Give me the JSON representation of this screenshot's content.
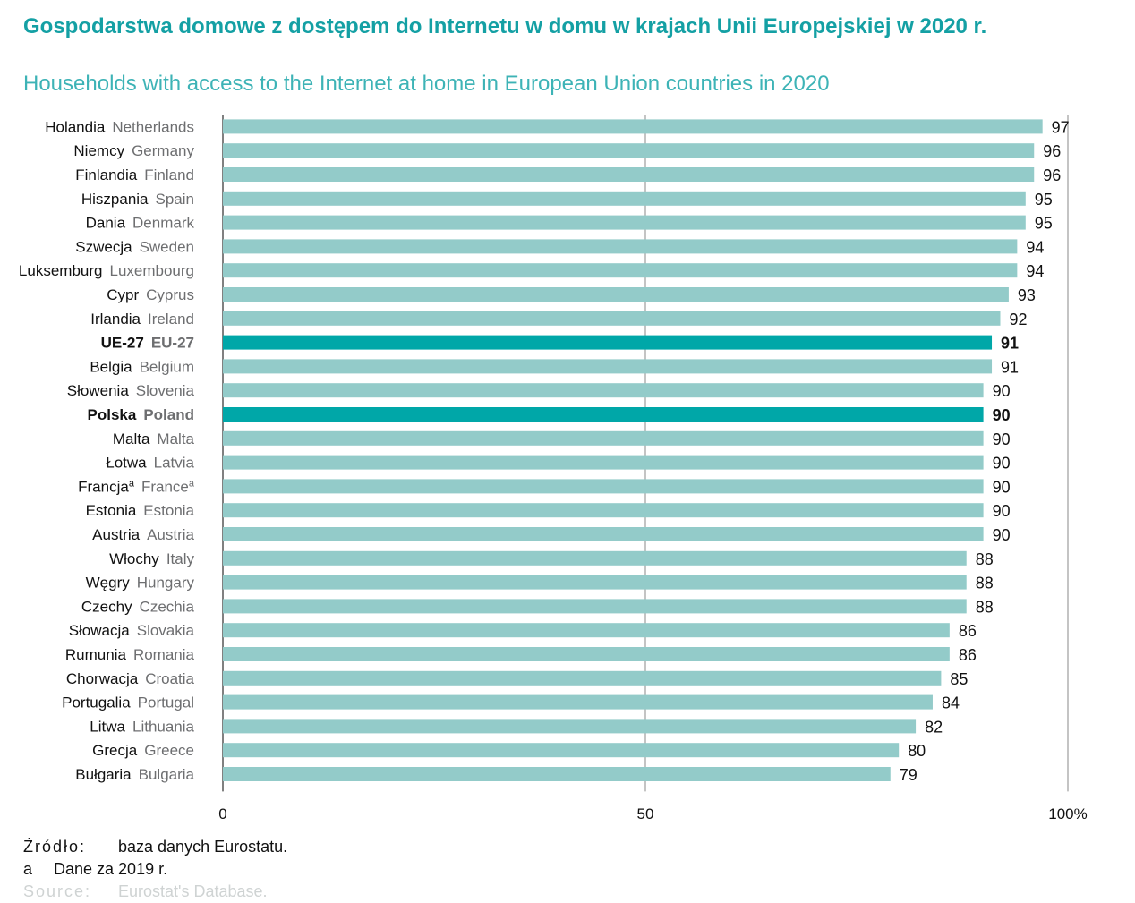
{
  "title_pl": "Gospodarstwa domowe z dostępem do Internetu w domu w krajach Unii Europejskiej w 2020 r.",
  "title_en": "Households with access to the Internet at home in European Union countries in 2020",
  "colors": {
    "bar": "#93cbc9",
    "highlight": "#00a7a8",
    "title": "#14a0a4",
    "subtitle": "#3db3b6",
    "label_en": "#6d6e70"
  },
  "chart_data": {
    "type": "bar",
    "orientation": "horizontal",
    "xlim": [
      0,
      100
    ],
    "x_ticks": [
      "0",
      "50",
      "100%"
    ],
    "gridlines": [
      0,
      50,
      100
    ],
    "categories": [
      {
        "pl": "Holandia",
        "en": "Netherlands",
        "value": 97,
        "highlight": false
      },
      {
        "pl": "Niemcy",
        "en": "Germany",
        "value": 96,
        "highlight": false
      },
      {
        "pl": "Finlandia",
        "en": "Finland",
        "value": 96,
        "highlight": false
      },
      {
        "pl": "Hiszpania",
        "en": "Spain",
        "value": 95,
        "highlight": false
      },
      {
        "pl": "Dania",
        "en": "Denmark",
        "value": 95,
        "highlight": false
      },
      {
        "pl": "Szwecja",
        "en": "Sweden",
        "value": 94,
        "highlight": false
      },
      {
        "pl": "Luksemburg",
        "en": "Luxembourg",
        "value": 94,
        "highlight": false
      },
      {
        "pl": "Cypr",
        "en": "Cyprus",
        "value": 93,
        "highlight": false
      },
      {
        "pl": "Irlandia",
        "en": "Ireland",
        "value": 92,
        "highlight": false
      },
      {
        "pl": "UE-27",
        "en": "EU-27",
        "value": 91,
        "highlight": true
      },
      {
        "pl": "Belgia",
        "en": "Belgium",
        "value": 91,
        "highlight": false
      },
      {
        "pl": "Słowenia",
        "en": "Slovenia",
        "value": 90,
        "highlight": false
      },
      {
        "pl": "Polska",
        "en": "Poland",
        "value": 90,
        "highlight": true
      },
      {
        "pl": "Malta",
        "en": "Malta",
        "value": 90,
        "highlight": false
      },
      {
        "pl": "Łotwa",
        "en": "Latvia",
        "value": 90,
        "highlight": false
      },
      {
        "pl": "Francja",
        "en": "France",
        "value": 90,
        "highlight": false,
        "note": "a"
      },
      {
        "pl": "Estonia",
        "en": "Estonia",
        "value": 90,
        "highlight": false
      },
      {
        "pl": "Austria",
        "en": "Austria",
        "value": 90,
        "highlight": false
      },
      {
        "pl": "Włochy",
        "en": "Italy",
        "value": 88,
        "highlight": false
      },
      {
        "pl": "Węgry",
        "en": "Hungary",
        "value": 88,
        "highlight": false
      },
      {
        "pl": "Czechy",
        "en": "Czechia",
        "value": 88,
        "highlight": false
      },
      {
        "pl": "Słowacja",
        "en": "Slovakia",
        "value": 86,
        "highlight": false
      },
      {
        "pl": "Rumunia",
        "en": "Romania",
        "value": 86,
        "highlight": false
      },
      {
        "pl": "Chorwacja",
        "en": "Croatia",
        "value": 85,
        "highlight": false
      },
      {
        "pl": "Portugalia",
        "en": "Portugal",
        "value": 84,
        "highlight": false
      },
      {
        "pl": "Litwa",
        "en": "Lithuania",
        "value": 82,
        "highlight": false
      },
      {
        "pl": "Grecja",
        "en": "Greece",
        "value": 80,
        "highlight": false
      },
      {
        "pl": "Bułgaria",
        "en": "Bulgaria",
        "value": 79,
        "highlight": false
      }
    ]
  },
  "footnotes": {
    "source_label": "Źródło:",
    "source_text": "baza danych Eurostatu.",
    "note_key": "a",
    "note_text": "Dane za 2019 r.",
    "source_en_label": "Source:",
    "source_en_text": "Eurostat's Database."
  }
}
